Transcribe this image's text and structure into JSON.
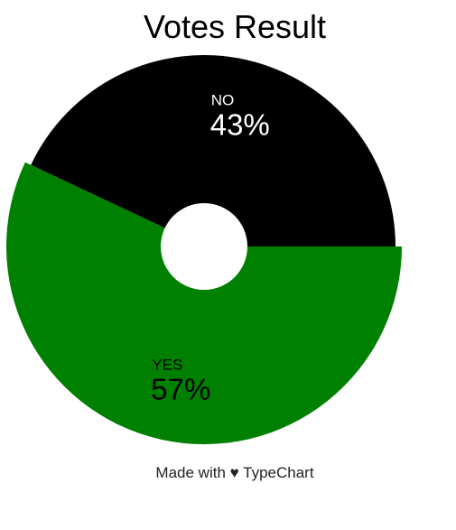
{
  "chart_data": {
    "type": "pie",
    "title": "Votes Result",
    "donut": true,
    "categories": [
      "NO",
      "YES"
    ],
    "values": [
      43,
      57
    ],
    "labels": [
      "43%",
      "57%"
    ],
    "colors": [
      "#000000",
      "#008000"
    ],
    "label_colors": [
      "#ffffff",
      "#000000"
    ],
    "legend": "none"
  },
  "footer": {
    "prefix": "Made with ",
    "heart": "♥",
    "suffix": " TypeChart"
  }
}
